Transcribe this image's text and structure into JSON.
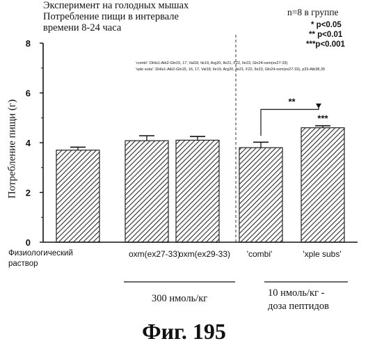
{
  "header": {
    "title_lines": [
      "Эксперимент на голодных мышах",
      "Потребление пищи в интервале",
      "времени 8-24 часа"
    ],
    "group_size": "n=8 в группе",
    "significance": [
      "* p<0.05",
      "** p<0.01",
      "***p<0.001"
    ]
  },
  "notes": [
    "'combi': DHis1-Aib2-Gln15, 17, Val18, Ile19, Arg20, Ile21, F22, Ile23, Gln24-oxm(ex27-33)",
    "'xple subs': DHis1-Aib2-Gln15, 16, 17, Val18, Ile19, Arg20, Ile21, F22, Ile23, Gln24-oxm(ex27-33), p33-Aib38,39"
  ],
  "labels": {
    "xlabel0_line1": "Физиологический",
    "xlabel0_line2": "раствор",
    "group_300": "300 нмоль/кг",
    "group_10_line1": "10 нмоль/кг -",
    "group_10_line2": "доза пептидов",
    "figure_caption": "Фиг. 195"
  },
  "colors": {
    "bar_fill": "#ffffff",
    "hatch": "#2a2a2a",
    "axis": "#111111"
  },
  "chart_data": {
    "type": "bar",
    "title": "",
    "ylabel": "Потребление пищи (г)",
    "xlabel": "",
    "ylim": [
      0,
      8
    ],
    "yticks": [
      0,
      2,
      4,
      6,
      8
    ],
    "categories": [
      "Физиологический раствор",
      "oxm(ex27-33)",
      "oxm(ex29-33)",
      "'combi'",
      "'xple subs'"
    ],
    "values": [
      3.7,
      4.08,
      4.1,
      3.8,
      4.6
    ],
    "errors": [
      0.12,
      0.2,
      0.15,
      0.22,
      0.08
    ],
    "bar_annotations": [
      "",
      "",
      "",
      "",
      "***"
    ],
    "comparisons": [
      {
        "from": 3,
        "to": 4,
        "label": "**"
      }
    ],
    "hatched": true,
    "dashed_separator_after_index": 2
  }
}
